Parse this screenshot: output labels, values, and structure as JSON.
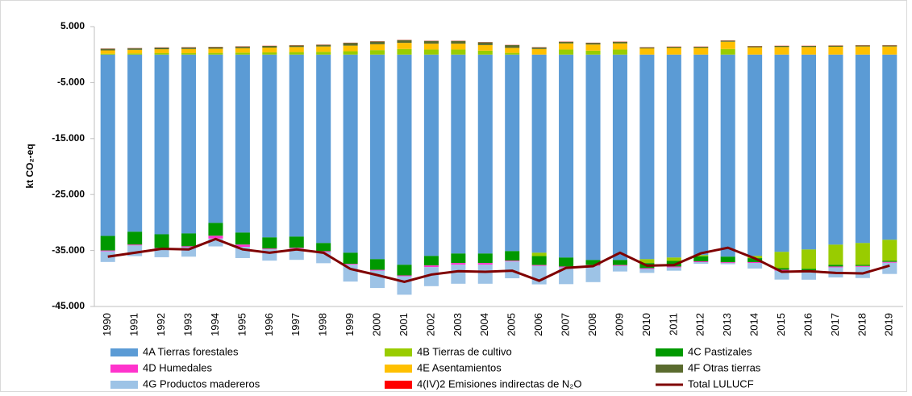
{
  "chart_data": {
    "type": "bar",
    "stacked": true,
    "y_axis_label": "kt CO₂-eq",
    "categories": [
      "1990",
      "1991",
      "1992",
      "1993",
      "1994",
      "1995",
      "1996",
      "1997",
      "1998",
      "1999",
      "2000",
      "2001",
      "2002",
      "2003",
      "2004",
      "2005",
      "2006",
      "2007",
      "2008",
      "2009",
      "2010",
      "2011",
      "2012",
      "2013",
      "2014",
      "2015",
      "2016",
      "2017",
      "2018",
      "2019"
    ],
    "ylim": [
      -45000,
      5000
    ],
    "yticks": [
      {
        "value": 5000,
        "label": "5.000"
      },
      {
        "value": -5000,
        "label": "-5.000"
      },
      {
        "value": -15000,
        "label": "-15.000"
      },
      {
        "value": -25000,
        "label": "-25.000"
      },
      {
        "value": -35000,
        "label": "-35.000"
      },
      {
        "value": -45000,
        "label": "-45.000"
      }
    ],
    "grid": false,
    "legend": "bottom",
    "series": [
      {
        "name": "4A Tierras forestales",
        "color": "#5b9bd5",
        "values": [
          -32400,
          -31650,
          -32100,
          -31950,
          -30070,
          -31800,
          -32660,
          -32520,
          -33670,
          -35400,
          -36550,
          -37550,
          -35970,
          -35540,
          -35540,
          -35110,
          -35400,
          -36260,
          -36700,
          -36700,
          -36550,
          -36260,
          -35830,
          -36100,
          -35970,
          -35250,
          -34820,
          -33960,
          -33670,
          -33090
        ]
      },
      {
        "name": "4B Tierras de cultivo",
        "color": "#99cc00",
        "values": [
          150,
          200,
          250,
          250,
          300,
          350,
          400,
          450,
          500,
          600,
          800,
          1000,
          900,
          900,
          700,
          300,
          -600,
          900,
          700,
          900,
          -700,
          -600,
          -200,
          1000,
          -400,
          -2900,
          -3450,
          -3600,
          -3900,
          -3750
        ]
      },
      {
        "name": "4C Pastizales",
        "color": "#009900",
        "values": [
          -2600,
          -2300,
          -2450,
          -2300,
          -2300,
          -2150,
          -2000,
          -2000,
          -1450,
          -2000,
          -1900,
          -1900,
          -1700,
          -1700,
          -1700,
          -1700,
          -1600,
          -1600,
          -900,
          -900,
          -900,
          -1000,
          -900,
          -1000,
          -700,
          -300,
          -300,
          -300,
          -200,
          -200
        ]
      },
      {
        "name": "4D Humedales",
        "color": "#ff33cc",
        "values": [
          -150,
          -150,
          -150,
          -150,
          -500,
          -400,
          -150,
          -150,
          -150,
          -150,
          -150,
          -150,
          -300,
          -300,
          -300,
          -150,
          -150,
          -150,
          -150,
          -150,
          -150,
          -150,
          -150,
          -150,
          -150,
          -150,
          -150,
          -150,
          -150,
          -150
        ]
      },
      {
        "name": "4E Asentamientos",
        "color": "#ffc000",
        "values": [
          600,
          650,
          700,
          750,
          750,
          800,
          850,
          900,
          950,
          1000,
          1050,
          1100,
          1050,
          1050,
          1000,
          900,
          1000,
          1100,
          1100,
          1100,
          1100,
          1200,
          1200,
          1300,
          1300,
          1350,
          1350,
          1400,
          1450,
          1450
        ]
      },
      {
        "name": "4F Otras tierras",
        "color": "#5a6b2e",
        "values": [
          300,
          300,
          300,
          300,
          300,
          300,
          300,
          300,
          300,
          500,
          500,
          500,
          500,
          500,
          500,
          500,
          300,
          300,
          300,
          300,
          200,
          200,
          200,
          200,
          200,
          200,
          200,
          200,
          200,
          200
        ]
      },
      {
        "name": "4G Productos madereros",
        "color": "#9dc3e6",
        "values": [
          -1900,
          -1900,
          -1500,
          -1700,
          -1400,
          -2000,
          -2000,
          -2000,
          -2000,
          -3000,
          -3100,
          -3300,
          -3400,
          -3400,
          -3400,
          -3000,
          -3300,
          -3000,
          -2900,
          -1000,
          -700,
          -600,
          -300,
          -200,
          -1000,
          -1600,
          -1500,
          -1800,
          -2000,
          -2000
        ]
      },
      {
        "name": "4(IV)2 Emisiones indirectas de N₂O",
        "color": "#ff0000",
        "values": [
          30,
          30,
          30,
          30,
          30,
          30,
          30,
          30,
          30,
          30,
          30,
          30,
          30,
          30,
          30,
          30,
          30,
          30,
          30,
          30,
          30,
          30,
          30,
          30,
          30,
          30,
          30,
          30,
          30,
          30
        ]
      },
      {
        "name": "Total LULUCF",
        "color": "#7f0000",
        "kind": "line",
        "values": [
          -36100,
          -35400,
          -34700,
          -34800,
          -32950,
          -34800,
          -35400,
          -34800,
          -35400,
          -38300,
          -39400,
          -40600,
          -39300,
          -38700,
          -38800,
          -38600,
          -40400,
          -38100,
          -37800,
          -35400,
          -37700,
          -37600,
          -35500,
          -34500,
          -36400,
          -38800,
          -38700,
          -39000,
          -39100,
          -37700
        ]
      }
    ]
  }
}
